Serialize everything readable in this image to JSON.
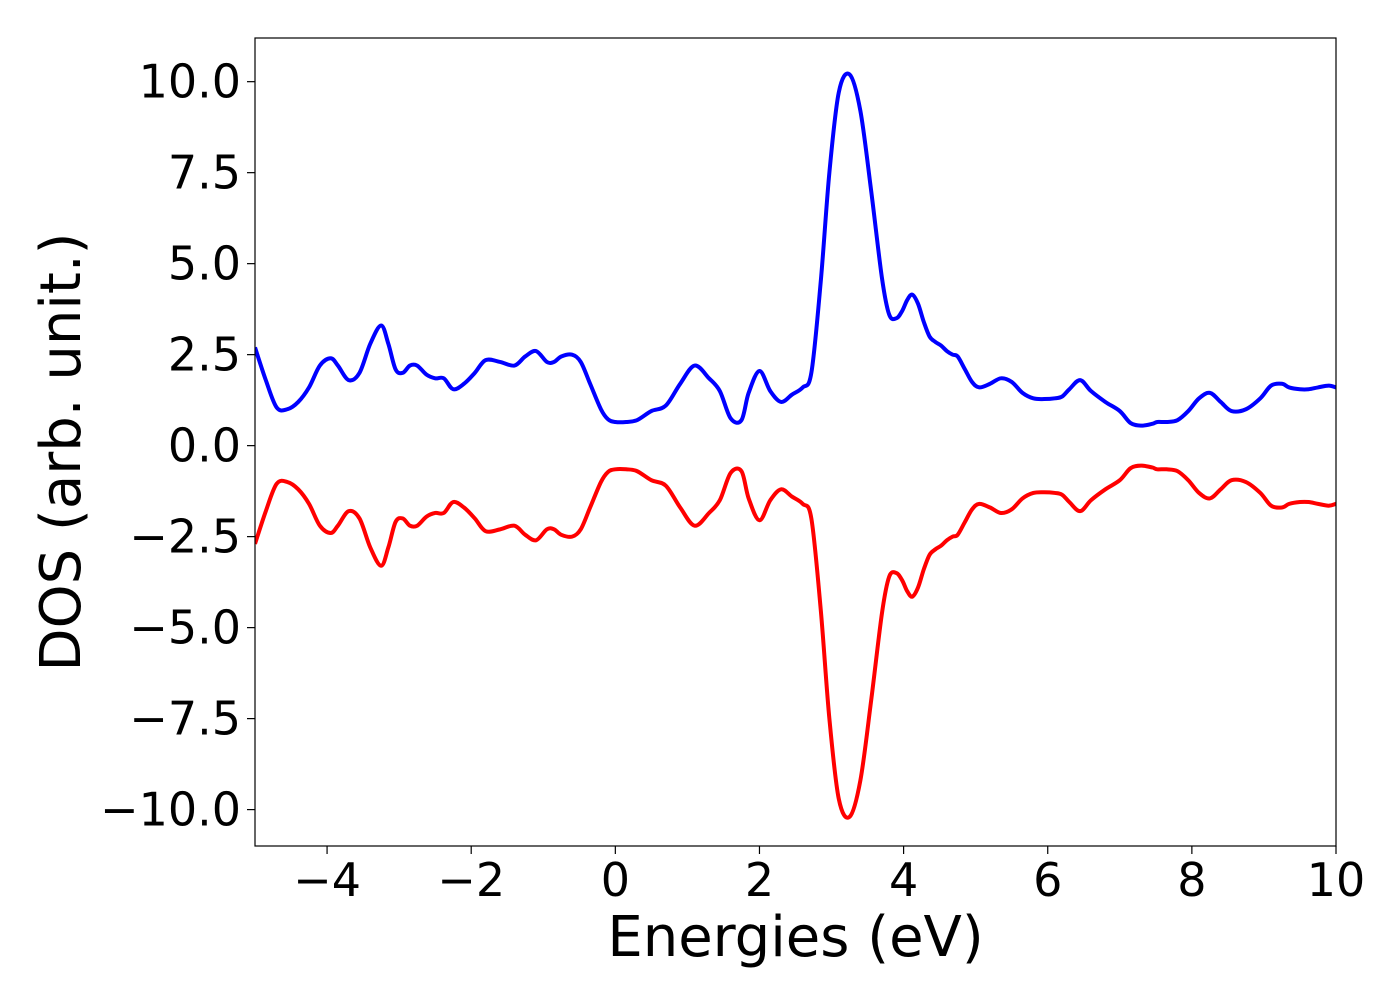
{
  "chart_data": {
    "type": "line",
    "title": "",
    "xlabel": "Energies (eV)",
    "ylabel": "DOS (arb. unit.)",
    "xlim": [
      -5,
      10
    ],
    "ylim": [
      -11,
      11.2
    ],
    "xticks": [
      -4,
      -2,
      0,
      2,
      4,
      6,
      8,
      10
    ],
    "xtick_labels": [
      "−4",
      "−2",
      "0",
      "2",
      "4",
      "6",
      "8",
      "10"
    ],
    "yticks": [
      10.0,
      7.5,
      5.0,
      2.5,
      0.0,
      -2.5,
      -5.0,
      -7.5,
      -10.0
    ],
    "ytick_labels": [
      "10.0",
      "7.5",
      "5.0",
      "2.5",
      "0.0",
      "−2.5",
      "−5.0",
      "−7.5",
      "−10.0"
    ],
    "grid": false,
    "series": [
      {
        "color": "#0000ff",
        "x": [
          -5,
          -4.85,
          -4.7,
          -4.55,
          -4.4,
          -4.25,
          -4.1,
          -3.95,
          -3.85,
          -3.7,
          -3.55,
          -3.4,
          -3.25,
          -3.15,
          -3.05,
          -2.95,
          -2.85,
          -2.75,
          -2.62,
          -2.5,
          -2.38,
          -2.25,
          -2.1,
          -1.95,
          -1.8,
          -1.6,
          -1.4,
          -1.25,
          -1.1,
          -0.95,
          -0.85,
          -0.75,
          -0.6,
          -0.48,
          -0.35,
          -0.2,
          -0.1,
          0,
          0.15,
          0.3,
          0.5,
          0.7,
          0.9,
          1.1,
          1.3,
          1.45,
          1.6,
          1.75,
          1.85,
          2.0,
          2.15,
          2.3,
          2.45,
          2.6,
          2.72,
          2.85,
          2.97,
          3.1,
          3.25,
          3.4,
          3.55,
          3.7,
          3.8,
          3.9,
          3.98,
          4.05,
          4.12,
          4.2,
          4.28,
          4.36,
          4.44,
          4.52,
          4.6,
          4.68,
          4.75,
          4.85,
          4.95,
          5.05,
          5.2,
          5.35,
          5.5,
          5.65,
          5.8,
          5.95,
          6.1,
          6.2,
          6.3,
          6.45,
          6.6,
          6.8,
          7.0,
          7.15,
          7.3,
          7.45,
          7.52,
          7.65,
          7.8,
          7.95,
          8.1,
          8.25,
          8.4,
          8.55,
          8.75,
          8.95,
          9.1,
          9.25,
          9.35,
          9.5,
          9.62,
          9.75,
          9.9,
          10
        ],
        "y": [
          2.7,
          1.8,
          1.05,
          1.0,
          1.2,
          1.6,
          2.2,
          2.4,
          2.2,
          1.8,
          2.0,
          2.8,
          3.3,
          2.8,
          2.1,
          2.0,
          2.2,
          2.2,
          1.95,
          1.85,
          1.85,
          1.55,
          1.7,
          2.0,
          2.35,
          2.3,
          2.2,
          2.45,
          2.6,
          2.3,
          2.3,
          2.45,
          2.5,
          2.3,
          1.7,
          1.0,
          0.72,
          0.65,
          0.65,
          0.7,
          0.95,
          1.1,
          1.7,
          2.2,
          1.85,
          1.5,
          0.75,
          0.7,
          1.45,
          2.05,
          1.5,
          1.2,
          1.4,
          1.6,
          2.0,
          4.5,
          7.5,
          9.7,
          10.2,
          9.2,
          7.0,
          4.6,
          3.6,
          3.5,
          3.7,
          4.0,
          4.15,
          3.9,
          3.4,
          3.0,
          2.85,
          2.75,
          2.6,
          2.5,
          2.45,
          2.1,
          1.75,
          1.6,
          1.7,
          1.85,
          1.75,
          1.45,
          1.3,
          1.28,
          1.3,
          1.35,
          1.55,
          1.8,
          1.5,
          1.2,
          0.95,
          0.62,
          0.55,
          0.6,
          0.65,
          0.65,
          0.7,
          0.95,
          1.3,
          1.45,
          1.2,
          0.95,
          1.0,
          1.3,
          1.65,
          1.7,
          1.6,
          1.55,
          1.55,
          1.6,
          1.65,
          1.6
        ]
      },
      {
        "color": "#ff0000",
        "x": [
          -5,
          -4.85,
          -4.7,
          -4.55,
          -4.4,
          -4.25,
          -4.1,
          -3.95,
          -3.85,
          -3.7,
          -3.55,
          -3.4,
          -3.25,
          -3.15,
          -3.05,
          -2.95,
          -2.85,
          -2.75,
          -2.62,
          -2.5,
          -2.38,
          -2.25,
          -2.1,
          -1.95,
          -1.8,
          -1.6,
          -1.4,
          -1.25,
          -1.1,
          -0.95,
          -0.85,
          -0.75,
          -0.6,
          -0.48,
          -0.35,
          -0.2,
          -0.1,
          0,
          0.15,
          0.3,
          0.5,
          0.7,
          0.9,
          1.1,
          1.3,
          1.45,
          1.6,
          1.75,
          1.85,
          2.0,
          2.15,
          2.3,
          2.45,
          2.6,
          2.72,
          2.85,
          2.97,
          3.1,
          3.25,
          3.4,
          3.55,
          3.7,
          3.8,
          3.9,
          3.98,
          4.05,
          4.12,
          4.2,
          4.28,
          4.36,
          4.44,
          4.52,
          4.6,
          4.68,
          4.75,
          4.85,
          4.95,
          5.05,
          5.2,
          5.35,
          5.5,
          5.65,
          5.8,
          5.95,
          6.1,
          6.2,
          6.3,
          6.45,
          6.6,
          6.8,
          7.0,
          7.15,
          7.3,
          7.45,
          7.52,
          7.65,
          7.8,
          7.95,
          8.1,
          8.25,
          8.4,
          8.55,
          8.75,
          8.95,
          9.1,
          9.25,
          9.35,
          9.5,
          9.62,
          9.75,
          9.9,
          10
        ],
        "y": [
          -2.7,
          -1.8,
          -1.05,
          -1.0,
          -1.2,
          -1.6,
          -2.2,
          -2.4,
          -2.2,
          -1.8,
          -2.0,
          -2.8,
          -3.3,
          -2.8,
          -2.1,
          -2.0,
          -2.2,
          -2.2,
          -1.95,
          -1.85,
          -1.85,
          -1.55,
          -1.7,
          -2.0,
          -2.35,
          -2.3,
          -2.2,
          -2.45,
          -2.6,
          -2.3,
          -2.3,
          -2.45,
          -2.5,
          -2.3,
          -1.7,
          -1.0,
          -0.72,
          -0.65,
          -0.65,
          -0.7,
          -0.95,
          -1.1,
          -1.7,
          -2.2,
          -1.85,
          -1.5,
          -0.75,
          -0.7,
          -1.45,
          -2.05,
          -1.5,
          -1.2,
          -1.4,
          -1.6,
          -2.0,
          -4.5,
          -7.5,
          -9.7,
          -10.2,
          -9.2,
          -7.0,
          -4.6,
          -3.6,
          -3.5,
          -3.7,
          -4.0,
          -4.15,
          -3.9,
          -3.4,
          -3.0,
          -2.85,
          -2.75,
          -2.6,
          -2.5,
          -2.45,
          -2.1,
          -1.75,
          -1.6,
          -1.7,
          -1.85,
          -1.75,
          -1.45,
          -1.3,
          -1.28,
          -1.3,
          -1.35,
          -1.55,
          -1.8,
          -1.5,
          -1.2,
          -0.95,
          -0.62,
          -0.55,
          -0.6,
          -0.65,
          -0.65,
          -0.7,
          -0.95,
          -1.3,
          -1.45,
          -1.2,
          -0.95,
          -1.0,
          -1.3,
          -1.65,
          -1.7,
          -1.6,
          -1.55,
          -1.55,
          -1.6,
          -1.65,
          -1.6
        ]
      }
    ]
  }
}
